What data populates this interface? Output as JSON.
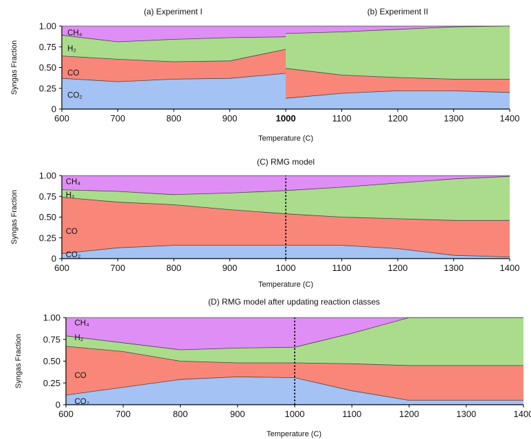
{
  "colors": {
    "CO2": "#a4c2f4",
    "CO": "#f8877a",
    "H2": "#aadc8c",
    "CH4": "#df8ef5",
    "outline": "#444444"
  },
  "chart_data": [
    {
      "type": "area",
      "stacked": true,
      "title": "(a) Experiment I",
      "xlabel": "Temperature (C)",
      "ylabel": "Syngas Fraction",
      "xlim": [
        600,
        1000
      ],
      "ylim": [
        0,
        1.0
      ],
      "xticks": [
        "600",
        "700",
        "800",
        "900",
        "1000"
      ],
      "yticks": [
        "0",
        "0.25",
        "0.50",
        "0.75",
        "1.00"
      ],
      "x": [
        600,
        700,
        800,
        900,
        1000
      ],
      "series": [
        {
          "name": "CO₂",
          "values": [
            0.37,
            0.33,
            0.36,
            0.37,
            0.43
          ]
        },
        {
          "name": "CO",
          "values": [
            0.27,
            0.27,
            0.21,
            0.21,
            0.29
          ]
        },
        {
          "name": "H₂",
          "values": [
            0.25,
            0.21,
            0.27,
            0.28,
            0.15
          ]
        },
        {
          "name": "CH₄",
          "values": [
            0.11,
            0.19,
            0.16,
            0.14,
            0.13
          ]
        }
      ]
    },
    {
      "type": "area",
      "stacked": true,
      "title": "(b) Experiment II",
      "xlabel": "Temperature (C)",
      "xlim": [
        1000,
        1400
      ],
      "ylim": [
        0,
        1.0
      ],
      "xticks": [
        "1000",
        "1100",
        "1200",
        "1300",
        "1400"
      ],
      "x": [
        1000,
        1100,
        1200,
        1300,
        1400
      ],
      "series": [
        {
          "name": "CO₂",
          "values": [
            0.13,
            0.19,
            0.22,
            0.22,
            0.2
          ]
        },
        {
          "name": "CO",
          "values": [
            0.36,
            0.22,
            0.16,
            0.14,
            0.16
          ]
        },
        {
          "name": "H₂",
          "values": [
            0.42,
            0.52,
            0.58,
            0.63,
            0.64
          ]
        },
        {
          "name": "CH₄",
          "values": [
            0.09,
            0.07,
            0.04,
            0.01,
            0.0
          ]
        }
      ]
    },
    {
      "type": "area",
      "stacked": true,
      "title": "(C)  RMG model",
      "xlabel": "Temperature (C)",
      "ylabel": "Syngas Fraction",
      "xlim": [
        600,
        1400
      ],
      "ylim": [
        0,
        1.0
      ],
      "xticks": [
        "600",
        "700",
        "800",
        "900",
        "1000",
        "1100",
        "1200",
        "1300",
        "1400"
      ],
      "yticks": [
        "0",
        "0.25",
        "0.50",
        "0.75",
        "1.00"
      ],
      "vline": 1000,
      "x": [
        600,
        700,
        800,
        900,
        1000,
        1100,
        1200,
        1300,
        1400
      ],
      "series": [
        {
          "name": "CO₂",
          "values": [
            0.06,
            0.13,
            0.16,
            0.16,
            0.16,
            0.16,
            0.12,
            0.04,
            0.02
          ]
        },
        {
          "name": "CO",
          "values": [
            0.68,
            0.55,
            0.49,
            0.43,
            0.38,
            0.34,
            0.36,
            0.42,
            0.44
          ]
        },
        {
          "name": "H₂",
          "values": [
            0.09,
            0.13,
            0.12,
            0.2,
            0.28,
            0.36,
            0.43,
            0.5,
            0.53
          ]
        },
        {
          "name": "CH₄",
          "values": [
            0.17,
            0.19,
            0.23,
            0.21,
            0.18,
            0.14,
            0.09,
            0.04,
            0.01
          ]
        }
      ]
    },
    {
      "type": "area",
      "stacked": true,
      "title": "(D)  RMG model after updating reaction classes",
      "xlabel": "Temperature (C)",
      "ylabel": "Syngas Fraction",
      "xlim": [
        600,
        1400
      ],
      "ylim": [
        0,
        1.0
      ],
      "xticks": [
        "600",
        "700",
        "800",
        "900",
        "1000",
        "1100",
        "1200",
        "1300",
        "1400"
      ],
      "yticks": [
        "0",
        "0.25",
        "0.50",
        "0.75",
        "1.00"
      ],
      "vline": 1000,
      "x": [
        600,
        700,
        800,
        900,
        1000,
        1100,
        1200,
        1300,
        1400
      ],
      "series": [
        {
          "name": "CO₂",
          "values": [
            0.11,
            0.2,
            0.29,
            0.32,
            0.31,
            0.16,
            0.05,
            0.05,
            0.05
          ]
        },
        {
          "name": "CO",
          "values": [
            0.56,
            0.41,
            0.21,
            0.16,
            0.17,
            0.31,
            0.4,
            0.4,
            0.4
          ]
        },
        {
          "name": "H₂",
          "values": [
            0.12,
            0.1,
            0.13,
            0.17,
            0.18,
            0.35,
            0.55,
            0.55,
            0.55
          ]
        },
        {
          "name": "CH₄",
          "values": [
            0.21,
            0.29,
            0.37,
            0.35,
            0.34,
            0.18,
            0.0,
            0.0,
            0.0
          ]
        }
      ]
    }
  ]
}
